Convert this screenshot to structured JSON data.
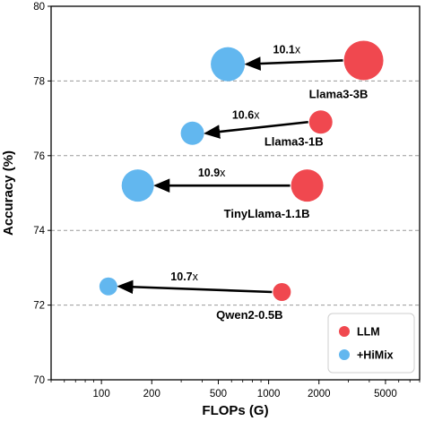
{
  "chart_data": {
    "type": "scatter",
    "xlabel": "FLOPs (G)",
    "ylabel": "Accuracy (%)",
    "x_scale": "log",
    "xlim": [
      50,
      8000
    ],
    "ylim": [
      70,
      80
    ],
    "x_ticks": [
      100,
      200,
      500,
      1000,
      2000,
      5000
    ],
    "x_tick_labels": [
      "100",
      "200",
      "500",
      "1000",
      "2000",
      "5000"
    ],
    "y_ticks": [
      70,
      72,
      74,
      76,
      78,
      80
    ],
    "y_tick_labels": [
      "70",
      "72",
      "74",
      "76",
      "78",
      "80"
    ],
    "grid": "horizontal dashed",
    "legend_position": "bottom-right",
    "series": [
      {
        "name": "LLM",
        "color": "#f0484f",
        "points": [
          {
            "label": "Llama3-3B",
            "x": 3700,
            "y": 78.55
          },
          {
            "label": "Llama3-1B",
            "x": 2050,
            "y": 76.9
          },
          {
            "label": "TinyLlama-1.1B",
            "x": 1700,
            "y": 75.2
          },
          {
            "label": "Qwen2-0.5B",
            "x": 1200,
            "y": 72.35
          }
        ]
      },
      {
        "name": "+HiMix",
        "color": "#62b7ef",
        "points": [
          {
            "label": "Llama3-3B",
            "x": 570,
            "y": 78.45
          },
          {
            "label": "Llama3-1B",
            "x": 350,
            "y": 76.6
          },
          {
            "label": "TinyLlama-1.1B",
            "x": 165,
            "y": 75.2
          },
          {
            "label": "Qwen2-0.5B",
            "x": 110,
            "y": 72.5
          }
        ]
      }
    ],
    "speedups": [
      {
        "model": "Llama3-3B",
        "bold": "10.1",
        "suffix": "x"
      },
      {
        "model": "Llama3-1B",
        "bold": "10.6",
        "suffix": "x"
      },
      {
        "model": "TinyLlama-1.1B",
        "bold": "10.9",
        "suffix": "x"
      },
      {
        "model": "Qwen2-0.5B",
        "bold": "10.7",
        "suffix": "x"
      }
    ]
  }
}
